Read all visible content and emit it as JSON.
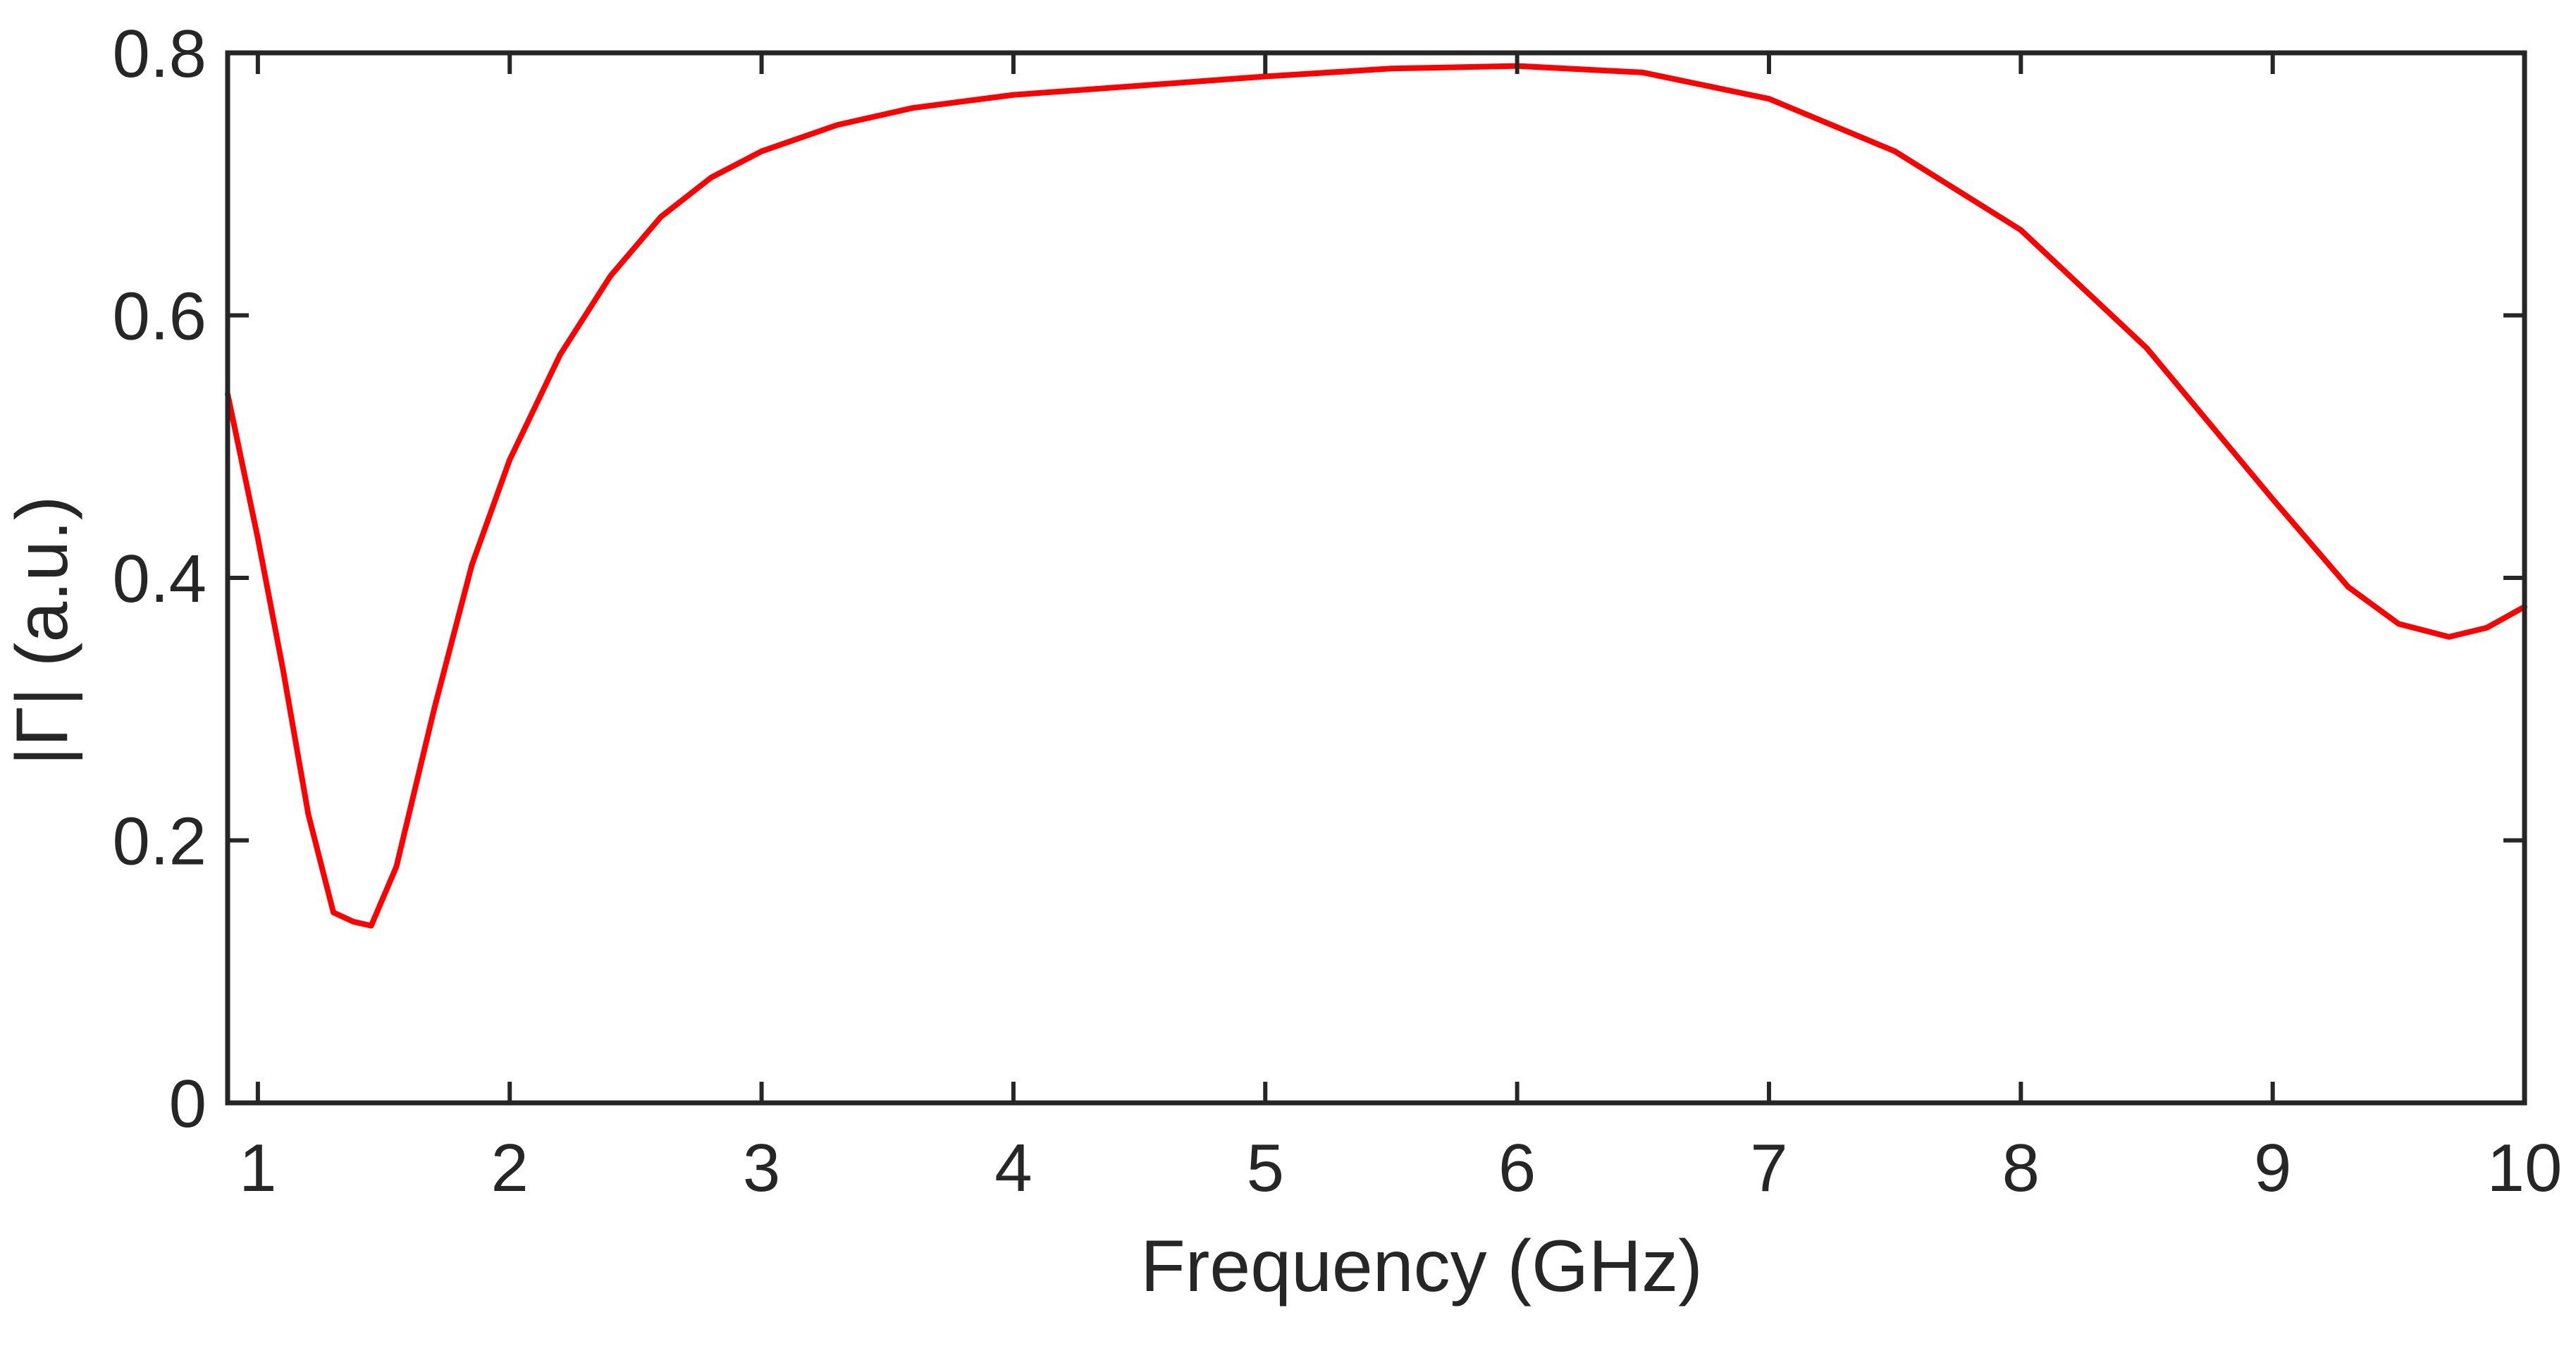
{
  "chart_data": {
    "type": "line",
    "xlabel": "Frequency (GHz)",
    "ylabel": "|Γ| (a.u.)",
    "xlim": [
      0.88,
      10
    ],
    "ylim": [
      0,
      0.8
    ],
    "xticks": [
      1,
      2,
      3,
      4,
      5,
      6,
      7,
      8,
      9,
      10
    ],
    "yticks": [
      0,
      0.2,
      0.4,
      0.6,
      0.8
    ],
    "xtick_labels": [
      "1",
      "2",
      "3",
      "4",
      "5",
      "6",
      "7",
      "8",
      "9",
      "10"
    ],
    "ytick_labels": [
      "0",
      "0.2",
      "0.4",
      "0.6",
      "0.8"
    ],
    "grid": false,
    "box": true,
    "series": [
      {
        "color": "#ff0000",
        "x": [
          0.88,
          1.0,
          1.1,
          1.2,
          1.3,
          1.38,
          1.45,
          1.55,
          1.7,
          1.85,
          2.0,
          2.2,
          2.4,
          2.6,
          2.8,
          3.0,
          3.3,
          3.6,
          4.0,
          4.5,
          5.0,
          5.5,
          6.0,
          6.5,
          7.0,
          7.5,
          8.0,
          8.5,
          9.0,
          9.3,
          9.5,
          9.7,
          9.85,
          10.0
        ],
        "y": [
          0.54,
          0.43,
          0.33,
          0.22,
          0.145,
          0.138,
          0.135,
          0.18,
          0.3,
          0.41,
          0.49,
          0.57,
          0.63,
          0.675,
          0.705,
          0.725,
          0.745,
          0.758,
          0.768,
          0.775,
          0.782,
          0.788,
          0.79,
          0.785,
          0.765,
          0.725,
          0.665,
          0.575,
          0.46,
          0.393,
          0.365,
          0.355,
          0.362,
          0.378
        ]
      }
    ]
  }
}
